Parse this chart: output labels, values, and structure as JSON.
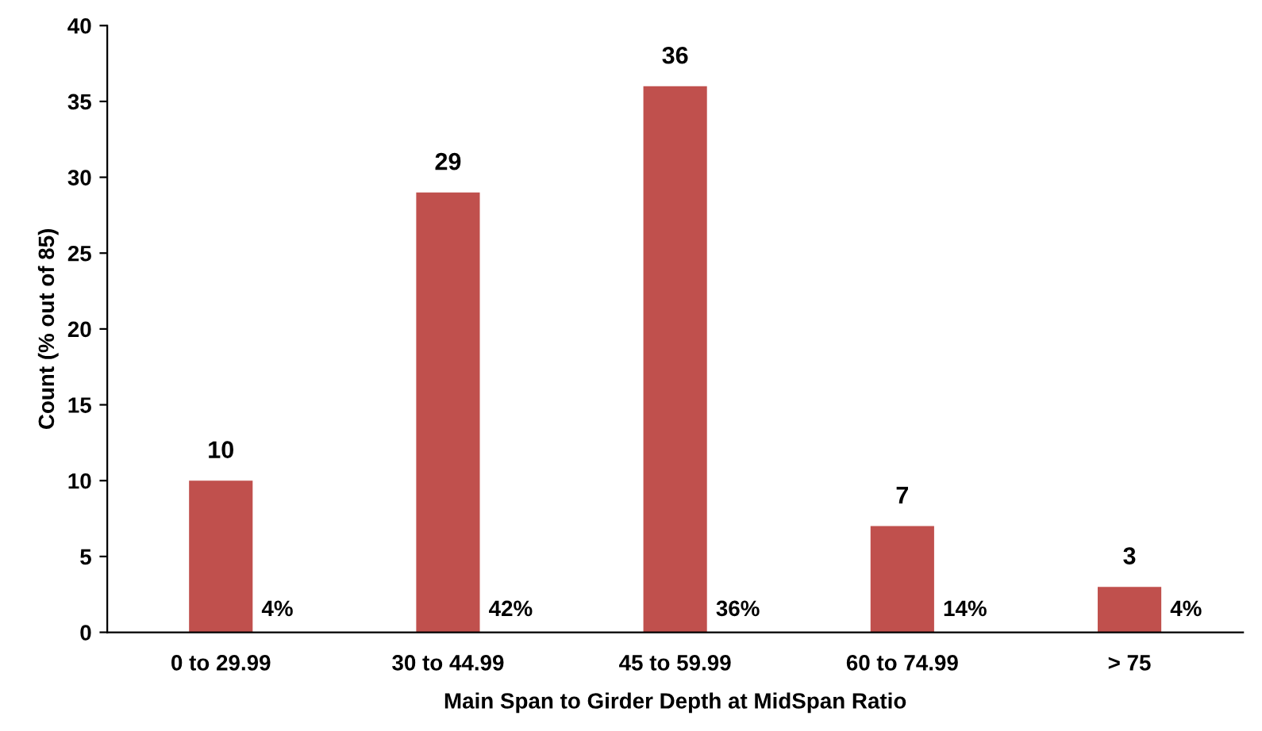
{
  "chart_data": {
    "type": "bar",
    "xlabel": "Main Span to Girder Depth at MidSpan Ratio",
    "ylabel": "Count (% out of 85)",
    "categories": [
      "0 to 29.99",
      "30 to 44.99",
      "45 to 59.99",
      "60 to 74.99",
      "> 75"
    ],
    "values": [
      10,
      29,
      36,
      7,
      3
    ],
    "color": "#c0504d",
    "data_labels": true,
    "ylim": [
      0,
      40
    ],
    "yticks": [
      0,
      5,
      10,
      15,
      20,
      25,
      30,
      35,
      40
    ],
    "grid": false,
    "legend": false,
    "annotations": [
      "4%",
      "42%",
      "36%",
      "14%",
      "4%"
    ]
  }
}
